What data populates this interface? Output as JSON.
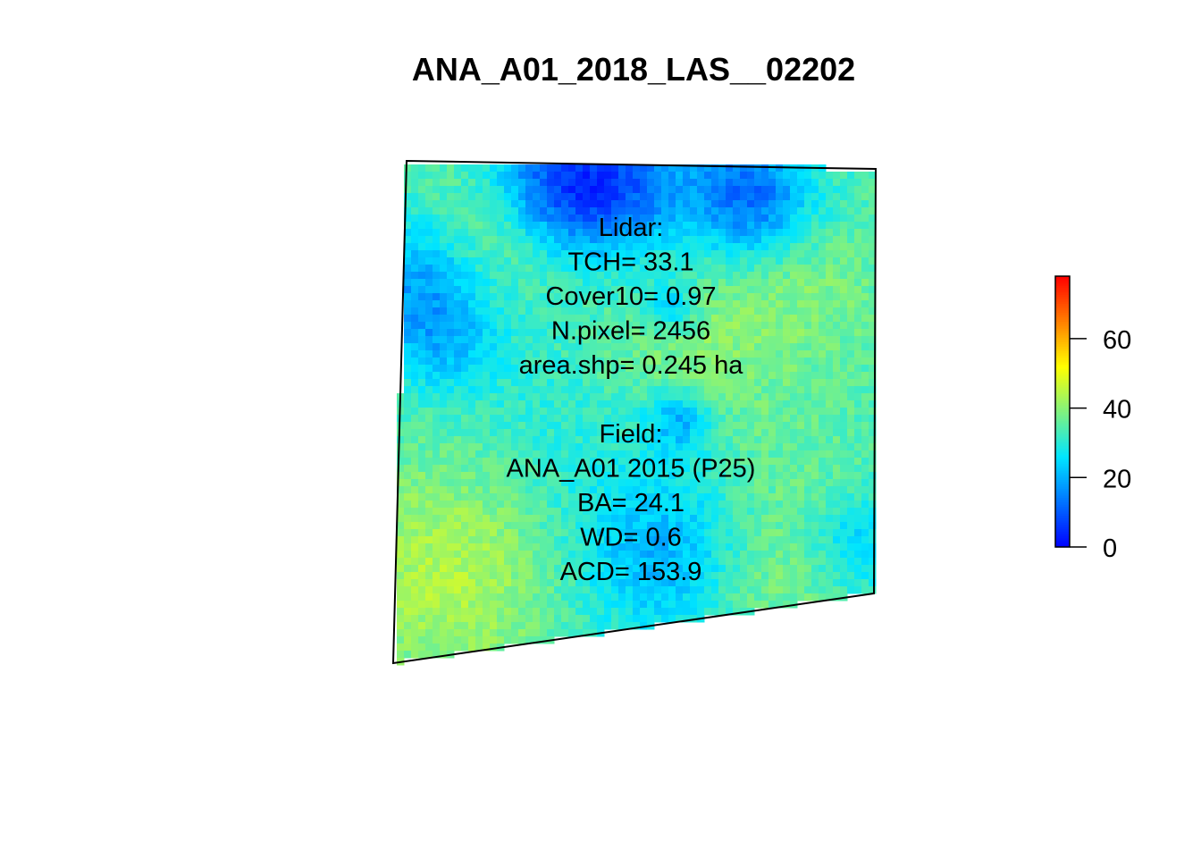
{
  "chart_data": {
    "type": "heatmap",
    "title": "ANA_A01_2018_LAS__02202",
    "colorbar": {
      "range": [
        0,
        78
      ],
      "ticks": [
        0,
        20,
        40,
        60
      ],
      "palette": [
        "#0000ff",
        "#00e5ff",
        "#ffff00",
        "#ff0000"
      ]
    },
    "annotations": {
      "lidar": [
        "Lidar:",
        "TCH= 33.1",
        "Cover10= 0.97",
        "N.pixel= 2456",
        "area.shp= 0.245 ha"
      ],
      "field": [
        "Field:",
        "ANA_A01 2015 (P25)",
        "BA= 24.1",
        "WD= 0.6",
        "ACD= 153.9"
      ]
    }
  }
}
